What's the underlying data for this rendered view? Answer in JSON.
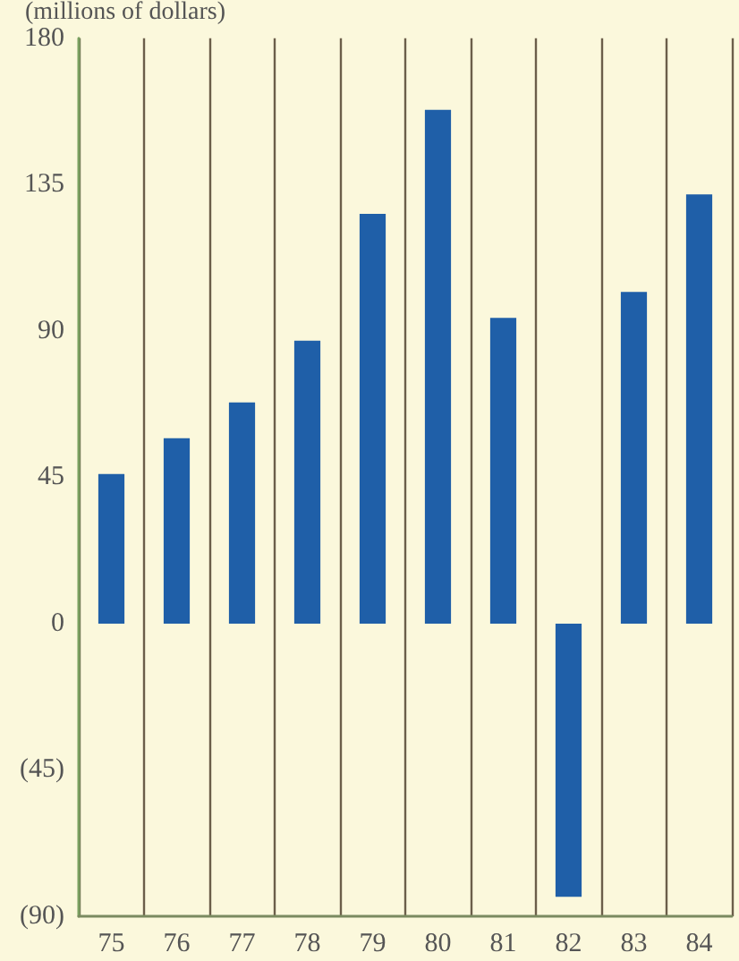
{
  "chart_data": {
    "type": "bar",
    "ylabel": "(millions of dollars)",
    "categories": [
      "75",
      "76",
      "77",
      "78",
      "79",
      "80",
      "81",
      "82",
      "83",
      "84"
    ],
    "values": [
      46,
      57,
      68,
      87,
      126,
      158,
      94,
      -84,
      102,
      132
    ],
    "color": "#1f5fa8",
    "ylim": [
      -90,
      180
    ],
    "yticks": [
      {
        "value": -90,
        "label": "(90)"
      },
      {
        "value": -45,
        "label": "(45)"
      },
      0,
      45,
      90,
      135,
      180
    ],
    "grid": "x"
  }
}
